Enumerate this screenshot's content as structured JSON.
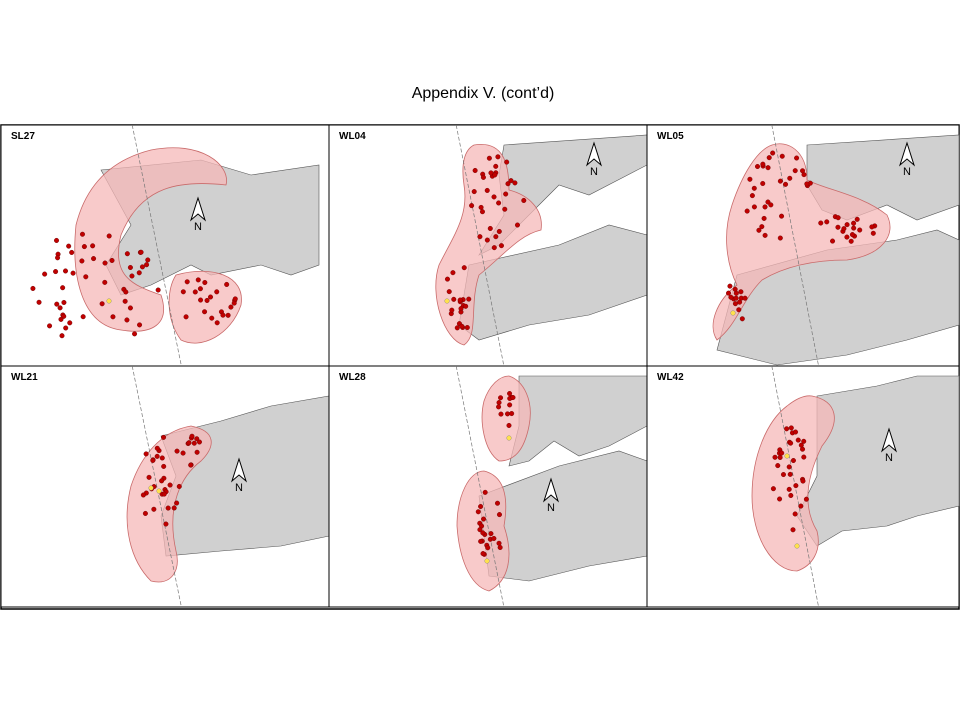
{
  "title": "Appendix V.  (cont’d)",
  "panels": [
    {
      "label": "SL27",
      "north": "N"
    },
    {
      "label": "WL04",
      "north": "N"
    },
    {
      "label": "WL05",
      "north": "N"
    },
    {
      "label": "WL21",
      "north": "N"
    },
    {
      "label": "WL28",
      "north": "N"
    },
    {
      "label": "WL42",
      "north": "N"
    }
  ]
}
